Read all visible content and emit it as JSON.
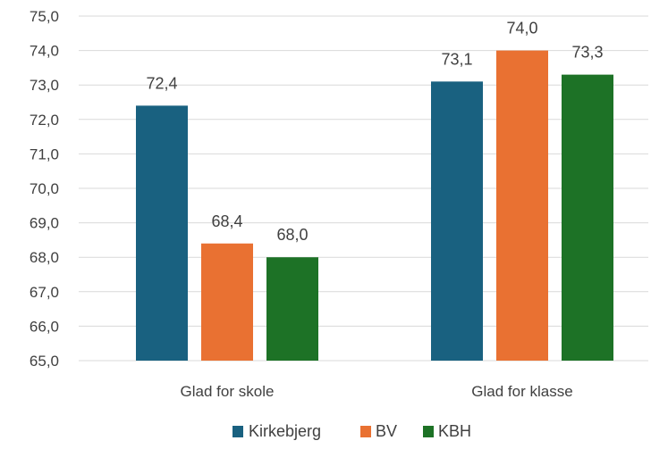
{
  "chart_data": {
    "type": "bar",
    "title": "",
    "xlabel": "",
    "ylabel": "",
    "categories": [
      "Glad for skole",
      "Glad for klasse"
    ],
    "series": [
      {
        "name": "Kirkebjerg",
        "color": "#196180",
        "values": [
          72.4,
          73.1
        ],
        "labels": [
          "72,4",
          "73,1"
        ]
      },
      {
        "name": "BV",
        "color": "#E97132",
        "values": [
          68.4,
          74.0
        ],
        "labels": [
          "68,4",
          "74,0"
        ]
      },
      {
        "name": "KBH",
        "color": "#1D7226",
        "values": [
          68.0,
          73.3
        ],
        "labels": [
          "68,0",
          "73,3"
        ]
      }
    ],
    "ylim": [
      65,
      75
    ],
    "yticks": [
      65,
      66,
      67,
      68,
      69,
      70,
      71,
      72,
      73,
      74,
      75
    ],
    "ytick_labels": [
      "65,0",
      "66,0",
      "67,0",
      "68,0",
      "69,0",
      "70,0",
      "71,0",
      "72,0",
      "73,0",
      "74,0",
      "75,0"
    ],
    "grid": true,
    "legend_position": "bottom"
  }
}
